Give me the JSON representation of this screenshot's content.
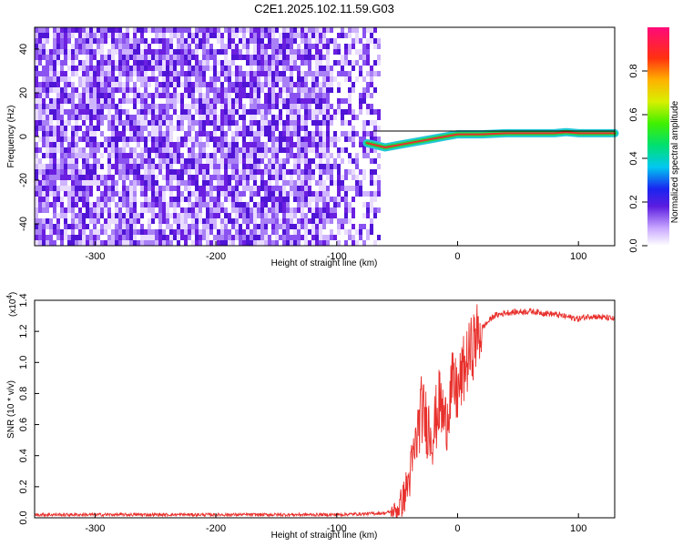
{
  "title": "C2E1.2025.102.11.59.G03",
  "colors": {
    "snr_line": "#e8302c",
    "spectro_noise": "#6b1fe0",
    "trace_core": "#e8302c",
    "trace_mid": "#22d34a",
    "trace_outer": "#23c7d8"
  },
  "chart_data": [
    {
      "type": "heatmap",
      "title": "C2E1.2025.102.11.59.G03",
      "xlabel": "Height of straight line (km)",
      "ylabel": "Frequency (Hz)",
      "xlim": [
        -350,
        130
      ],
      "ylim": [
        -50,
        50
      ],
      "x_ticks": [
        -300,
        -200,
        -100,
        0,
        100
      ],
      "x_tick_labels": [
        "-300",
        "-200",
        "-100",
        "0",
        "100"
      ],
      "y_ticks": [
        -40,
        -20,
        0,
        20,
        40
      ],
      "y_tick_labels": [
        "-40",
        "-20",
        "0",
        "20",
        "40"
      ],
      "colorbar": {
        "label": "Normalized spectral amplitude",
        "range": [
          0,
          1
        ],
        "ticks": [
          0.0,
          0.2,
          0.4,
          0.6,
          0.8
        ],
        "tick_labels": [
          "0.0",
          "0.2",
          "0.4",
          "0.6",
          "0.8"
        ]
      },
      "noise_region_x": [
        -350,
        -65
      ],
      "signal_trace": {
        "x": [
          -75,
          -60,
          -50,
          -40,
          -30,
          -20,
          -10,
          0,
          10,
          20,
          40,
          60,
          80,
          90,
          100,
          130
        ],
        "freq": [
          -3,
          -5,
          -4,
          -3,
          -2,
          -1,
          0,
          1,
          1,
          1,
          1.5,
          1.5,
          1.5,
          2,
          1.5,
          1.5
        ]
      }
    },
    {
      "type": "line",
      "xlabel": "Height of straight line (km)",
      "ylabel": "SNR (10 * v/v)",
      "y_multiplier_label": "(x10",
      "y_multiplier_exp": "4",
      "y_multiplier_close": ")",
      "xlim": [
        -350,
        130
      ],
      "ylim": [
        0,
        1.4
      ],
      "x_ticks": [
        -300,
        -200,
        -100,
        0,
        100
      ],
      "x_tick_labels": [
        "-300",
        "-200",
        "-100",
        "0",
        "100"
      ],
      "y_ticks": [
        0.0,
        0.2,
        0.4,
        0.6,
        0.8,
        1.0,
        1.2,
        1.4
      ],
      "y_tick_labels": [
        "0.0",
        "0.2",
        "0.4",
        "0.6",
        "0.8",
        "1.0",
        "1.2",
        "1.4"
      ],
      "series": [
        {
          "x": [
            -350,
            -300,
            -250,
            -200,
            -150,
            -100,
            -60,
            -50,
            -45,
            -40,
            -35,
            -30,
            -25,
            -20,
            -15,
            -10,
            -5,
            0,
            5,
            10,
            15,
            20,
            30,
            40,
            60,
            80,
            100,
            110,
            130
          ],
          "values": [
            0.02,
            0.02,
            0.02,
            0.02,
            0.02,
            0.02,
            0.03,
            0.05,
            0.12,
            0.25,
            0.45,
            0.7,
            0.6,
            0.55,
            0.75,
            0.6,
            0.85,
            0.8,
            0.95,
            1.05,
            1.15,
            1.22,
            1.3,
            1.32,
            1.33,
            1.31,
            1.28,
            1.3,
            1.28
          ]
        }
      ]
    }
  ]
}
